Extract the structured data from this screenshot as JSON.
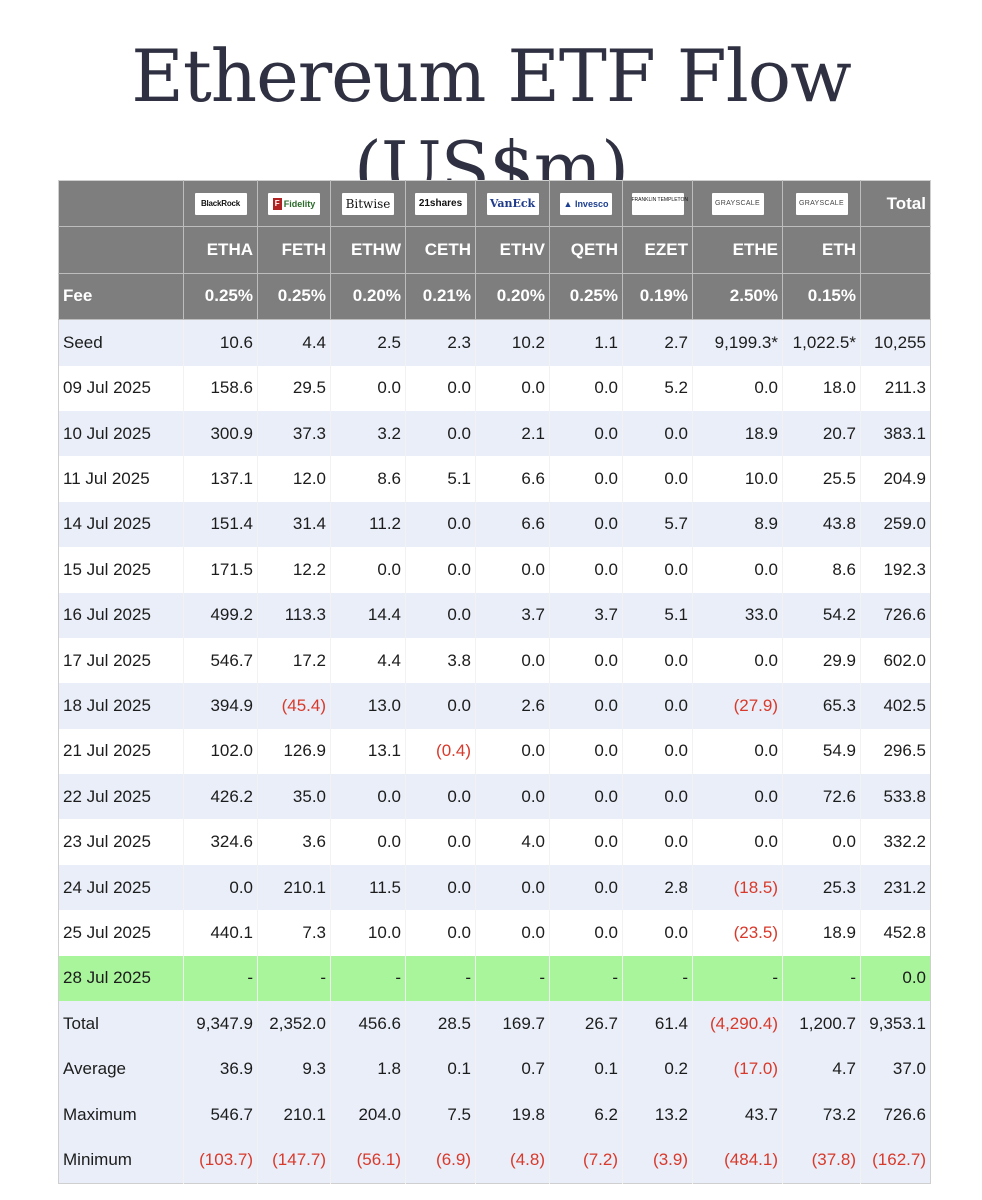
{
  "title": "Ethereum ETF Flow (US$m)",
  "colors": {
    "header_bg": "#7e7e7e",
    "alt_row": "#e9eef8",
    "highlight_row": "#a9f59c",
    "negative": "#d9392b"
  },
  "header": {
    "logos": [
      {
        "name": "BlackRock",
        "icon": "blackrock-logo"
      },
      {
        "name": "Fidelity",
        "icon": "fidelity-logo"
      },
      {
        "name": "Bitwise",
        "icon": "bitwise-logo"
      },
      {
        "name": "21shares",
        "icon": "21shares-logo"
      },
      {
        "name": "VanEck",
        "icon": "vaneck-logo"
      },
      {
        "name": "Invesco",
        "icon": "invesco-logo"
      },
      {
        "name": "FRANKLIN TEMPLETON",
        "icon": "franklin-templeton-logo"
      },
      {
        "name": "GRAYSCALE",
        "icon": "grayscale-logo"
      },
      {
        "name": "GRAYSCALE",
        "icon": "grayscale-logo"
      }
    ],
    "total_label": "Total",
    "tickers": [
      "ETHA",
      "FETH",
      "ETHW",
      "CETH",
      "ETHV",
      "QETH",
      "EZET",
      "ETHE",
      "ETH"
    ],
    "fee_label": "Fee",
    "fees": [
      "0.25%",
      "0.25%",
      "0.20%",
      "0.21%",
      "0.20%",
      "0.25%",
      "0.19%",
      "2.50%",
      "0.15%"
    ]
  },
  "rows": [
    {
      "label": "Seed",
      "values": [
        "10.6",
        "4.4",
        "2.5",
        "2.3",
        "10.2",
        "1.1",
        "2.7",
        "9,199.3*",
        "1,022.5*",
        "10,255"
      ],
      "style": "alt"
    },
    {
      "label": "09 Jul 2025",
      "values": [
        "158.6",
        "29.5",
        "0.0",
        "0.0",
        "0.0",
        "0.0",
        "5.2",
        "0.0",
        "18.0",
        "211.3"
      ],
      "style": "plain"
    },
    {
      "label": "10 Jul 2025",
      "values": [
        "300.9",
        "37.3",
        "3.2",
        "0.0",
        "2.1",
        "0.0",
        "0.0",
        "18.9",
        "20.7",
        "383.1"
      ],
      "style": "alt"
    },
    {
      "label": "11 Jul 2025",
      "values": [
        "137.1",
        "12.0",
        "8.6",
        "5.1",
        "6.6",
        "0.0",
        "0.0",
        "10.0",
        "25.5",
        "204.9"
      ],
      "style": "plain"
    },
    {
      "label": "14 Jul 2025",
      "values": [
        "151.4",
        "31.4",
        "11.2",
        "0.0",
        "6.6",
        "0.0",
        "5.7",
        "8.9",
        "43.8",
        "259.0"
      ],
      "style": "alt"
    },
    {
      "label": "15 Jul 2025",
      "values": [
        "171.5",
        "12.2",
        "0.0",
        "0.0",
        "0.0",
        "0.0",
        "0.0",
        "0.0",
        "8.6",
        "192.3"
      ],
      "style": "plain"
    },
    {
      "label": "16 Jul 2025",
      "values": [
        "499.2",
        "113.3",
        "14.4",
        "0.0",
        "3.7",
        "3.7",
        "5.1",
        "33.0",
        "54.2",
        "726.6"
      ],
      "style": "alt"
    },
    {
      "label": "17 Jul 2025",
      "values": [
        "546.7",
        "17.2",
        "4.4",
        "3.8",
        "0.0",
        "0.0",
        "0.0",
        "0.0",
        "29.9",
        "602.0"
      ],
      "style": "plain"
    },
    {
      "label": "18 Jul 2025",
      "values": [
        "394.9",
        "(45.4)",
        "13.0",
        "0.0",
        "2.6",
        "0.0",
        "0.0",
        "(27.9)",
        "65.3",
        "402.5"
      ],
      "style": "alt"
    },
    {
      "label": "21 Jul 2025",
      "values": [
        "102.0",
        "126.9",
        "13.1",
        "(0.4)",
        "0.0",
        "0.0",
        "0.0",
        "0.0",
        "54.9",
        "296.5"
      ],
      "style": "plain"
    },
    {
      "label": "22 Jul 2025",
      "values": [
        "426.2",
        "35.0",
        "0.0",
        "0.0",
        "0.0",
        "0.0",
        "0.0",
        "0.0",
        "72.6",
        "533.8"
      ],
      "style": "alt"
    },
    {
      "label": "23 Jul 2025",
      "values": [
        "324.6",
        "3.6",
        "0.0",
        "0.0",
        "4.0",
        "0.0",
        "0.0",
        "0.0",
        "0.0",
        "332.2"
      ],
      "style": "plain"
    },
    {
      "label": "24 Jul 2025",
      "values": [
        "0.0",
        "210.1",
        "11.5",
        "0.0",
        "0.0",
        "0.0",
        "2.8",
        "(18.5)",
        "25.3",
        "231.2"
      ],
      "style": "alt"
    },
    {
      "label": "25 Jul 2025",
      "values": [
        "440.1",
        "7.3",
        "10.0",
        "0.0",
        "0.0",
        "0.0",
        "0.0",
        "(23.5)",
        "18.9",
        "452.8"
      ],
      "style": "plain"
    },
    {
      "label": "28 Jul 2025",
      "values": [
        "-",
        "-",
        "-",
        "-",
        "-",
        "-",
        "-",
        "-",
        "-",
        "0.0"
      ],
      "style": "green"
    },
    {
      "label": "Total",
      "values": [
        "9,347.9",
        "2,352.0",
        "456.6",
        "28.5",
        "169.7",
        "26.7",
        "61.4",
        "(4,290.4)",
        "1,200.7",
        "9,353.1"
      ],
      "style": "alt"
    },
    {
      "label": "Average",
      "values": [
        "36.9",
        "9.3",
        "1.8",
        "0.1",
        "0.7",
        "0.1",
        "0.2",
        "(17.0)",
        "4.7",
        "37.0"
      ],
      "style": "alt"
    },
    {
      "label": "Maximum",
      "values": [
        "546.7",
        "210.1",
        "204.0",
        "7.5",
        "19.8",
        "6.2",
        "13.2",
        "43.7",
        "73.2",
        "726.6"
      ],
      "style": "alt"
    },
    {
      "label": "Minimum",
      "values": [
        "(103.7)",
        "(147.7)",
        "(56.1)",
        "(6.9)",
        "(4.8)",
        "(7.2)",
        "(3.9)",
        "(484.1)",
        "(37.8)",
        "(162.7)"
      ],
      "style": "alt"
    }
  ]
}
